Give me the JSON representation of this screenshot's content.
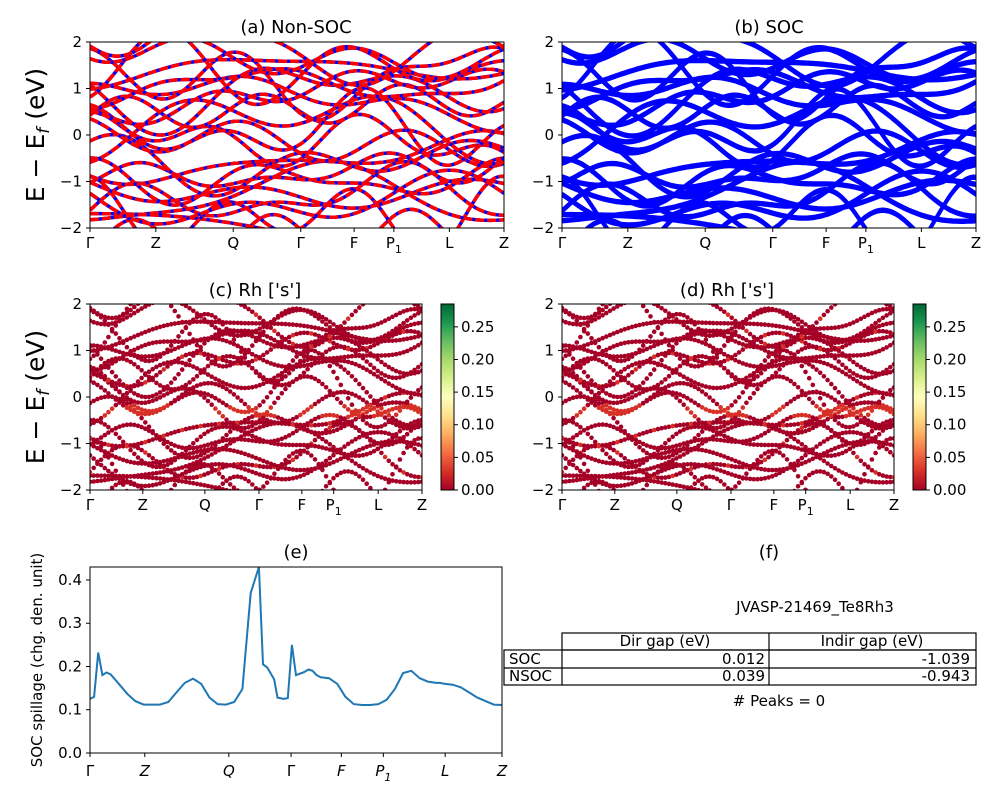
{
  "panels": {
    "a": {
      "title": "(a) Non-SOC"
    },
    "b": {
      "title": "(b) SOC"
    },
    "c": {
      "title": "(c)  Rh ['s']"
    },
    "d": {
      "title": "(d) Rh ['s']"
    },
    "e": {
      "title": "(e)"
    },
    "f": {
      "title": "(f)"
    }
  },
  "band_axis": {
    "ylabel": "E − E_f (eV)",
    "yticks": [
      "−2",
      "−1",
      "0",
      "1",
      "2"
    ],
    "kpath": [
      "Γ",
      "Z",
      "Q",
      "Γ",
      "F",
      "P1",
      "L",
      "Z"
    ]
  },
  "colorbar": {
    "ticks": [
      "0.00",
      "0.05",
      "0.10",
      "0.15",
      "0.20",
      "0.25"
    ],
    "colors": [
      "#a50026",
      "#d73027",
      "#f46d43",
      "#fdae61",
      "#fee08b",
      "#ffffbf",
      "#d9ef8b",
      "#a6d96a",
      "#66bd63",
      "#1a9850",
      "#006837"
    ]
  },
  "spillage": {
    "ylabel": "SOC spillage (chg. den. unit)",
    "yticks": [
      "0.0",
      "0.1",
      "0.2",
      "0.3",
      "0.4"
    ],
    "kpath": [
      "Γ",
      "Z",
      "Q",
      "Γ",
      "F",
      "P1",
      "L",
      "Z"
    ]
  },
  "table": {
    "title": "JVASP-21469_Te8Rh3",
    "headers": [
      "",
      "Dir gap (eV)",
      "Indir gap (eV)"
    ],
    "rows": [
      [
        "SOC",
        "0.012",
        "-1.039"
      ],
      [
        "NSOC",
        "0.039",
        "-0.943"
      ]
    ],
    "peaks": "# Peaks = 0"
  },
  "colors": {
    "nonsoc_dash": "#ff0000",
    "nonsoc_line": "#0000ff",
    "soc_line": "#0000ff",
    "spillage_line": "#1f77b4"
  },
  "chart_data": [
    {
      "type": "line",
      "title": "(e)",
      "xlabel": "",
      "ylabel": "SOC spillage (chg. den. unit)",
      "ylim": [
        0.0,
        0.43
      ],
      "xlim": [
        0,
        100
      ],
      "xtick_labels": [
        "Γ",
        "Z",
        "Q",
        "Γ",
        "F",
        "P1",
        "L",
        "Z"
      ],
      "series": [
        {
          "x": [
            0,
            1,
            2,
            3,
            4,
            5,
            7,
            9,
            11,
            13,
            15,
            17,
            19,
            21,
            23,
            25,
            27,
            29,
            31,
            33,
            35,
            37,
            39,
            41,
            42,
            43,
            43.8,
            44.7,
            45.5,
            47,
            48,
            49,
            50,
            52,
            53,
            54,
            55,
            56,
            58,
            60,
            62,
            64,
            66,
            68,
            70,
            72,
            74,
            76,
            78,
            80,
            82,
            84,
            85,
            86,
            88,
            90,
            92,
            94,
            96,
            98,
            100
          ],
          "y": [
            0.125,
            0.13,
            0.232,
            0.18,
            0.186,
            0.182,
            0.16,
            0.137,
            0.12,
            0.112,
            0.112,
            0.112,
            0.118,
            0.14,
            0.162,
            0.172,
            0.16,
            0.128,
            0.113,
            0.112,
            0.118,
            0.148,
            0.37,
            0.43,
            0.205,
            0.198,
            0.185,
            0.17,
            0.128,
            0.125,
            0.127,
            0.25,
            0.18,
            0.187,
            0.193,
            0.19,
            0.18,
            0.175,
            0.173,
            0.16,
            0.13,
            0.113,
            0.111,
            0.111,
            0.113,
            0.123,
            0.148,
            0.185,
            0.19,
            0.173,
            0.165,
            0.162,
            0.162,
            0.16,
            0.158,
            0.152,
            0.14,
            0.128,
            0.12,
            0.112,
            0.111
          ]
        }
      ]
    },
    {
      "type": "table",
      "title": "JVASP-21469_Te8Rh3",
      "headers": [
        "",
        "Dir gap (eV)",
        "Indir gap (eV)"
      ],
      "rows": [
        [
          "SOC",
          "0.012",
          "-1.039"
        ],
        [
          "NSOC",
          "0.039",
          "-0.943"
        ]
      ]
    }
  ]
}
